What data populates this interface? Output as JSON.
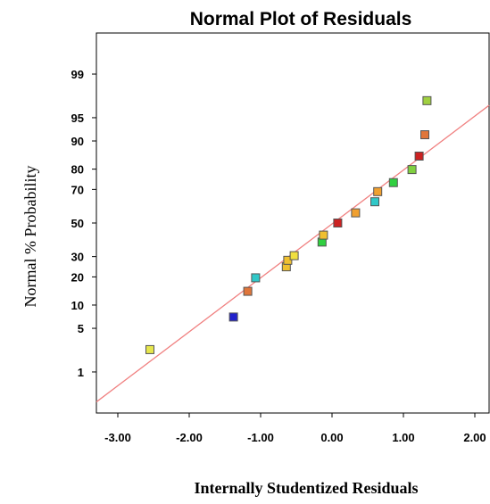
{
  "chart_data": {
    "type": "scatter",
    "title": "Normal Plot of Residuals",
    "xlabel": "Internally Studentized Residuals",
    "ylabel": "Normal % Probability",
    "xlim": [
      -3.3,
      2.2
    ],
    "ylim": [
      0.15,
      99.85
    ],
    "y_scale": "normal-probability",
    "grid": false,
    "x_ticks": [
      {
        "value": -3.0,
        "label": "-3.00"
      },
      {
        "value": -2.0,
        "label": "-2.00"
      },
      {
        "value": -1.0,
        "label": "-1.00"
      },
      {
        "value": 0.0,
        "label": "0.00"
      },
      {
        "value": 1.0,
        "label": "1.00"
      },
      {
        "value": 2.0,
        "label": "2.00"
      }
    ],
    "y_ticks": [
      {
        "value": 1,
        "label": "1"
      },
      {
        "value": 5,
        "label": "5"
      },
      {
        "value": 10,
        "label": "10"
      },
      {
        "value": 20,
        "label": "20"
      },
      {
        "value": 30,
        "label": "30"
      },
      {
        "value": 50,
        "label": "50"
      },
      {
        "value": 70,
        "label": "70"
      },
      {
        "value": 80,
        "label": "80"
      },
      {
        "value": 90,
        "label": "90"
      },
      {
        "value": 95,
        "label": "95"
      },
      {
        "value": 99,
        "label": "99"
      }
    ],
    "reference_line": {
      "color": "#f08080",
      "points": [
        {
          "x": -3.3,
          "y": 0.26
        },
        {
          "x": 2.2,
          "y": 96.7
        }
      ]
    },
    "points": [
      {
        "x": -2.55,
        "y": 2.4,
        "color": "#e6e64d"
      },
      {
        "x": -1.38,
        "y": 7.1,
        "color": "#2222cc"
      },
      {
        "x": -1.18,
        "y": 14.3,
        "color": "#e0763a"
      },
      {
        "x": -1.07,
        "y": 19.6,
        "color": "#30c8c8"
      },
      {
        "x": -0.64,
        "y": 24.7,
        "color": "#f0c030"
      },
      {
        "x": -0.62,
        "y": 28.0,
        "color": "#f0c030"
      },
      {
        "x": -0.53,
        "y": 30.5,
        "color": "#f0e040"
      },
      {
        "x": -0.14,
        "y": 38.3,
        "color": "#30d040"
      },
      {
        "x": -0.12,
        "y": 42.5,
        "color": "#f0c030"
      },
      {
        "x": 0.08,
        "y": 50.0,
        "color": "#cc2222"
      },
      {
        "x": 0.33,
        "y": 56.3,
        "color": "#f0a030"
      },
      {
        "x": 0.6,
        "y": 63.0,
        "color": "#30c8c8"
      },
      {
        "x": 0.64,
        "y": 68.8,
        "color": "#f0a030"
      },
      {
        "x": 0.86,
        "y": 73.6,
        "color": "#30d040"
      },
      {
        "x": 1.12,
        "y": 79.8,
        "color": "#80d040"
      },
      {
        "x": 1.22,
        "y": 85.2,
        "color": "#cc2222"
      },
      {
        "x": 1.3,
        "y": 91.6,
        "color": "#e0763a"
      },
      {
        "x": 1.33,
        "y": 97.2,
        "color": "#a0d040"
      }
    ]
  }
}
